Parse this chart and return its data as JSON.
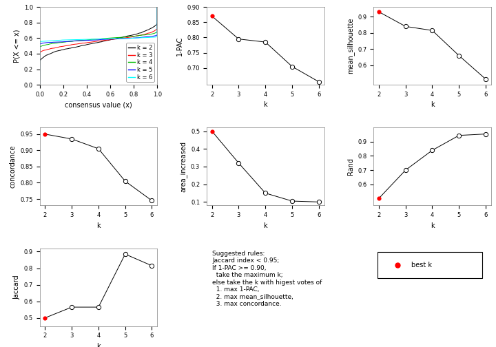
{
  "k_values": [
    2,
    3,
    4,
    5,
    6
  ],
  "pac_1minus": [
    0.87,
    0.795,
    0.785,
    0.705,
    0.655
  ],
  "mean_silhouette": [
    0.93,
    0.84,
    0.815,
    0.66,
    0.515
  ],
  "concordance": [
    0.95,
    0.935,
    0.905,
    0.805,
    0.745
  ],
  "area_increased": [
    0.5,
    0.32,
    0.15,
    0.105,
    0.1
  ],
  "rand": [
    0.5,
    0.7,
    0.84,
    0.945,
    0.955
  ],
  "jaccard": [
    0.5,
    0.565,
    0.565,
    0.885,
    0.815
  ],
  "pac_best_k_idx": [
    0
  ],
  "sil_best_k_idx": [
    0
  ],
  "conc_best_k_idx": [
    0
  ],
  "area_best_k_idx": [
    0
  ],
  "rand_best_k_idx": [
    0
  ],
  "jacc_best_k_idx": [
    0
  ],
  "ecdf_colors": [
    "black",
    "red",
    "#00bb00",
    "blue",
    "cyan"
  ],
  "ecdf_labels": [
    "k = 2",
    "k = 3",
    "k = 4",
    "k = 5",
    "k = 6"
  ],
  "dot_color_open": "white",
  "dot_color_best": "red",
  "line_color": "black",
  "bg_color": "white",
  "panel_bg": "white",
  "axis_fontsize": 7,
  "tick_fontsize": 6,
  "legend_fontsize": 6,
  "suggested_text_line1": "Suggested rules:",
  "suggested_text_line2": "Jaccard index < 0.95;",
  "suggested_text_line3": "If 1-PAC >= 0.90,",
  "suggested_text_line4": "  take the maximum k;",
  "suggested_text_line5": "else take the k with higest votes of",
  "suggested_text_line6": "  1. max 1-PAC,",
  "suggested_text_line7": "  2. max mean_silhouette,",
  "suggested_text_line8": "  3. max concordance."
}
